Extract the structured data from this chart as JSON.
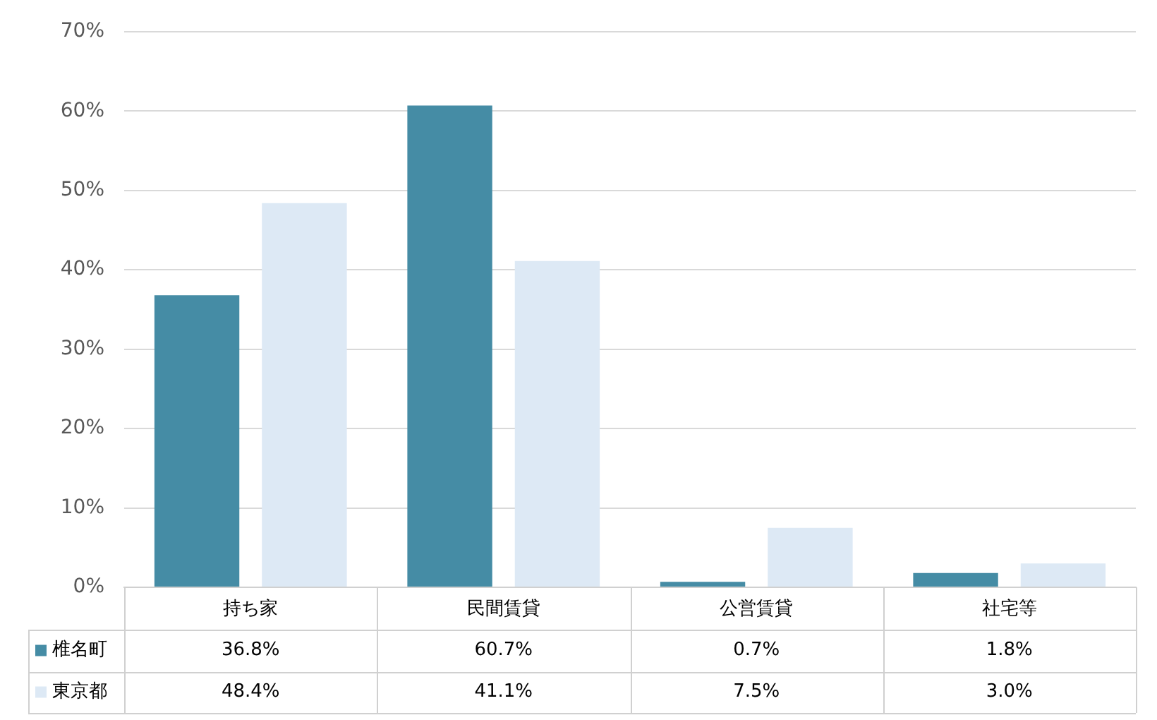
{
  "chart_data": {
    "type": "bar",
    "categories": [
      "持ち家",
      "民間賃貸",
      "公営賃貸",
      "社宅等"
    ],
    "series": [
      {
        "name": "椎名町",
        "color": "#458ca5",
        "values": [
          36.8,
          60.7,
          0.7,
          1.8
        ],
        "value_labels": [
          "36.8%",
          "60.7%",
          "0.7%",
          "1.8%"
        ]
      },
      {
        "name": "東京都",
        "color": "#dde9f5",
        "values": [
          48.4,
          41.1,
          7.5,
          3.0
        ],
        "value_labels": [
          "48.4%",
          "41.1%",
          "7.5%",
          "3.0%"
        ]
      }
    ],
    "ylim": [
      0,
      70
    ],
    "yticks": [
      {
        "value": 0,
        "label": "0%"
      },
      {
        "value": 10,
        "label": "10%"
      },
      {
        "value": 20,
        "label": "20%"
      },
      {
        "value": 30,
        "label": "30%"
      },
      {
        "value": 40,
        "label": "40%"
      },
      {
        "value": 50,
        "label": "50%"
      },
      {
        "value": 60,
        "label": "60%"
      },
      {
        "value": 70,
        "label": "70%"
      }
    ],
    "grid": "y",
    "legend": "bottom left"
  }
}
